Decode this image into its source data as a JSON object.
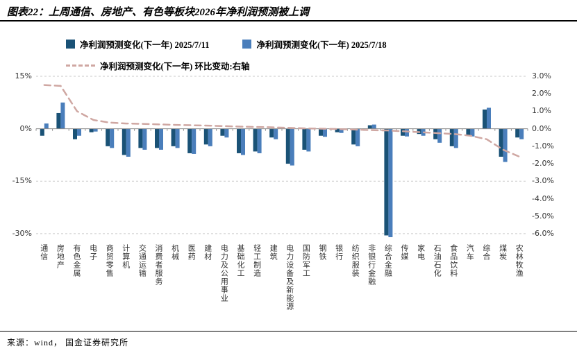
{
  "title": "图表22：上周通信、房地产、有色等板块2026年净利润预测被上调",
  "source": "来源：wind， 国金证券研究所",
  "colors": {
    "series1": "#1a5276",
    "series2": "#4a7ebb",
    "line": "#cfa7a2",
    "grid": "#c9c9c9",
    "axis": "#8c8c8c"
  },
  "legend": [
    {
      "label": "净利润预测变化(下一年) 2025/7/11",
      "color": "#1a5276",
      "type": "bar"
    },
    {
      "label": "净利润预测变化(下一年) 2025/7/18",
      "color": "#4a7ebb",
      "type": "bar"
    },
    {
      "label": "净利润预测变化(下一年) 环比变动:右轴",
      "color": "#cfa7a2",
      "type": "dashed-line"
    }
  ],
  "chart_data": {
    "type": "bar",
    "title": "上周通信、房地产、有色等板块2026年净利润预测被上调",
    "categories": [
      "通信",
      "房地产",
      "有色金属",
      "电子",
      "商贸零售",
      "计算机",
      "交通运输",
      "消费者服务",
      "机械",
      "医药",
      "建材",
      "电力及公用事业",
      "基础化工",
      "轻工制造",
      "建筑",
      "电力设备及新能源",
      "国防军工",
      "钢铁",
      "银行",
      "纺织服装",
      "非银行金融",
      "综合金融",
      "传媒",
      "家电",
      "石油石化",
      "食品饮料",
      "汽车",
      "综合",
      "煤炭",
      "农林牧渔"
    ],
    "series": [
      {
        "name": "净利润预测变化(下一年) 2025/7/11",
        "type": "bar",
        "axis": "left",
        "color": "#1a5276",
        "values": [
          -2.0,
          4.5,
          -3.0,
          -1.0,
          -5.0,
          -7.5,
          -5.5,
          -5.5,
          -5.0,
          -7.0,
          -4.5,
          -2.0,
          -7.0,
          -6.5,
          -2.5,
          -10.0,
          -6.0,
          -2.0,
          -1.0,
          -4.5,
          1.0,
          -30.5,
          -2.0,
          -1.5,
          -3.0,
          -5.0,
          -2.0,
          5.5,
          -8.0,
          -2.5
        ]
      },
      {
        "name": "净利润预测变化(下一年) 2025/7/18",
        "type": "bar",
        "axis": "left",
        "color": "#4a7ebb",
        "values": [
          1.5,
          7.5,
          -2.0,
          -0.8,
          -5.5,
          -8.0,
          -6.0,
          -6.0,
          -5.5,
          -7.2,
          -5.0,
          -2.5,
          -7.5,
          -7.0,
          -3.0,
          -10.5,
          -6.5,
          -2.3,
          -1.2,
          -5.0,
          1.2,
          -31.0,
          -2.2,
          -2.0,
          -4.0,
          -5.5,
          -2.2,
          6.0,
          -9.5,
          -3.0
        ]
      },
      {
        "name": "净利润预测变化(下一年) 环比变动:右轴",
        "type": "line",
        "axis": "right",
        "dashed": true,
        "color": "#cfa7a2",
        "values": [
          2.5,
          2.45,
          1.0,
          0.5,
          0.35,
          0.3,
          0.28,
          0.25,
          0.22,
          0.2,
          0.18,
          0.15,
          0.12,
          0.1,
          0.08,
          0.05,
          0.02,
          0.0,
          -0.02,
          -0.05,
          -0.08,
          -0.1,
          -0.15,
          -0.2,
          -0.25,
          -0.3,
          -0.4,
          -0.6,
          -1.2,
          -1.6
        ]
      }
    ],
    "left_axis": {
      "ticks": [
        "15%",
        "0%",
        "-15%",
        "-30%"
      ],
      "tick_values": [
        15,
        0,
        -15,
        -30
      ],
      "max": 15,
      "min": -31.6
    },
    "right_axis": {
      "ticks": [
        "3.0%",
        "2.0%",
        "1.0%",
        "0.0%",
        "-1.0%",
        "-2.0%",
        "-3.0%",
        "-4.0%",
        "-5.0%",
        "-6.0%"
      ],
      "tick_values": [
        3,
        2,
        1,
        0,
        -1,
        -2,
        -3,
        -4,
        -5,
        -6
      ],
      "max": 3.0,
      "min": -6.32
    },
    "grid": true,
    "legend_position": "top-left"
  }
}
